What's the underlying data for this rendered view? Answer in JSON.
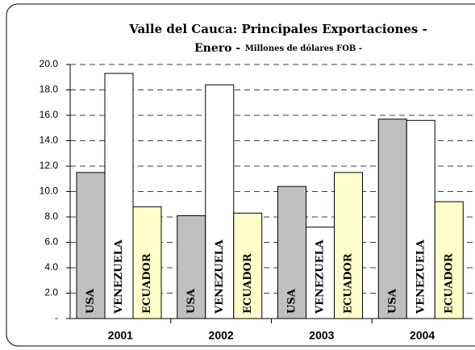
{
  "chart_data": {
    "type": "bar",
    "title": "Valle del Cauca: Principales Exportaciones -",
    "subtitle": "Enero -",
    "units": "Millones de dólares FOB -",
    "categories": [
      "2001",
      "2002",
      "2003",
      "2004"
    ],
    "series": [
      {
        "name": "USA",
        "color": "#c0c0c0",
        "values": [
          11.5,
          8.1,
          10.4,
          15.7
        ]
      },
      {
        "name": "VENEZUELA",
        "color": "#ffffff",
        "values": [
          19.3,
          18.4,
          7.2,
          15.6
        ]
      },
      {
        "name": "ECUADOR",
        "color": "#ffffcc",
        "values": [
          8.8,
          8.3,
          11.5,
          9.2
        ]
      }
    ],
    "ylim": [
      0,
      20
    ],
    "yticks": [
      {
        "value": 0,
        "label": "-"
      },
      {
        "value": 2,
        "label": "2.0"
      },
      {
        "value": 4,
        "label": "4.0"
      },
      {
        "value": 6,
        "label": "6.0"
      },
      {
        "value": 8,
        "label": "8.0"
      },
      {
        "value": 10,
        "label": "10.0"
      },
      {
        "value": 12,
        "label": "12.0"
      },
      {
        "value": 14,
        "label": "14.0"
      },
      {
        "value": 16,
        "label": "16.0"
      },
      {
        "value": 18,
        "label": "18.0"
      },
      {
        "value": 20,
        "label": "20.0"
      }
    ],
    "grid": true
  }
}
